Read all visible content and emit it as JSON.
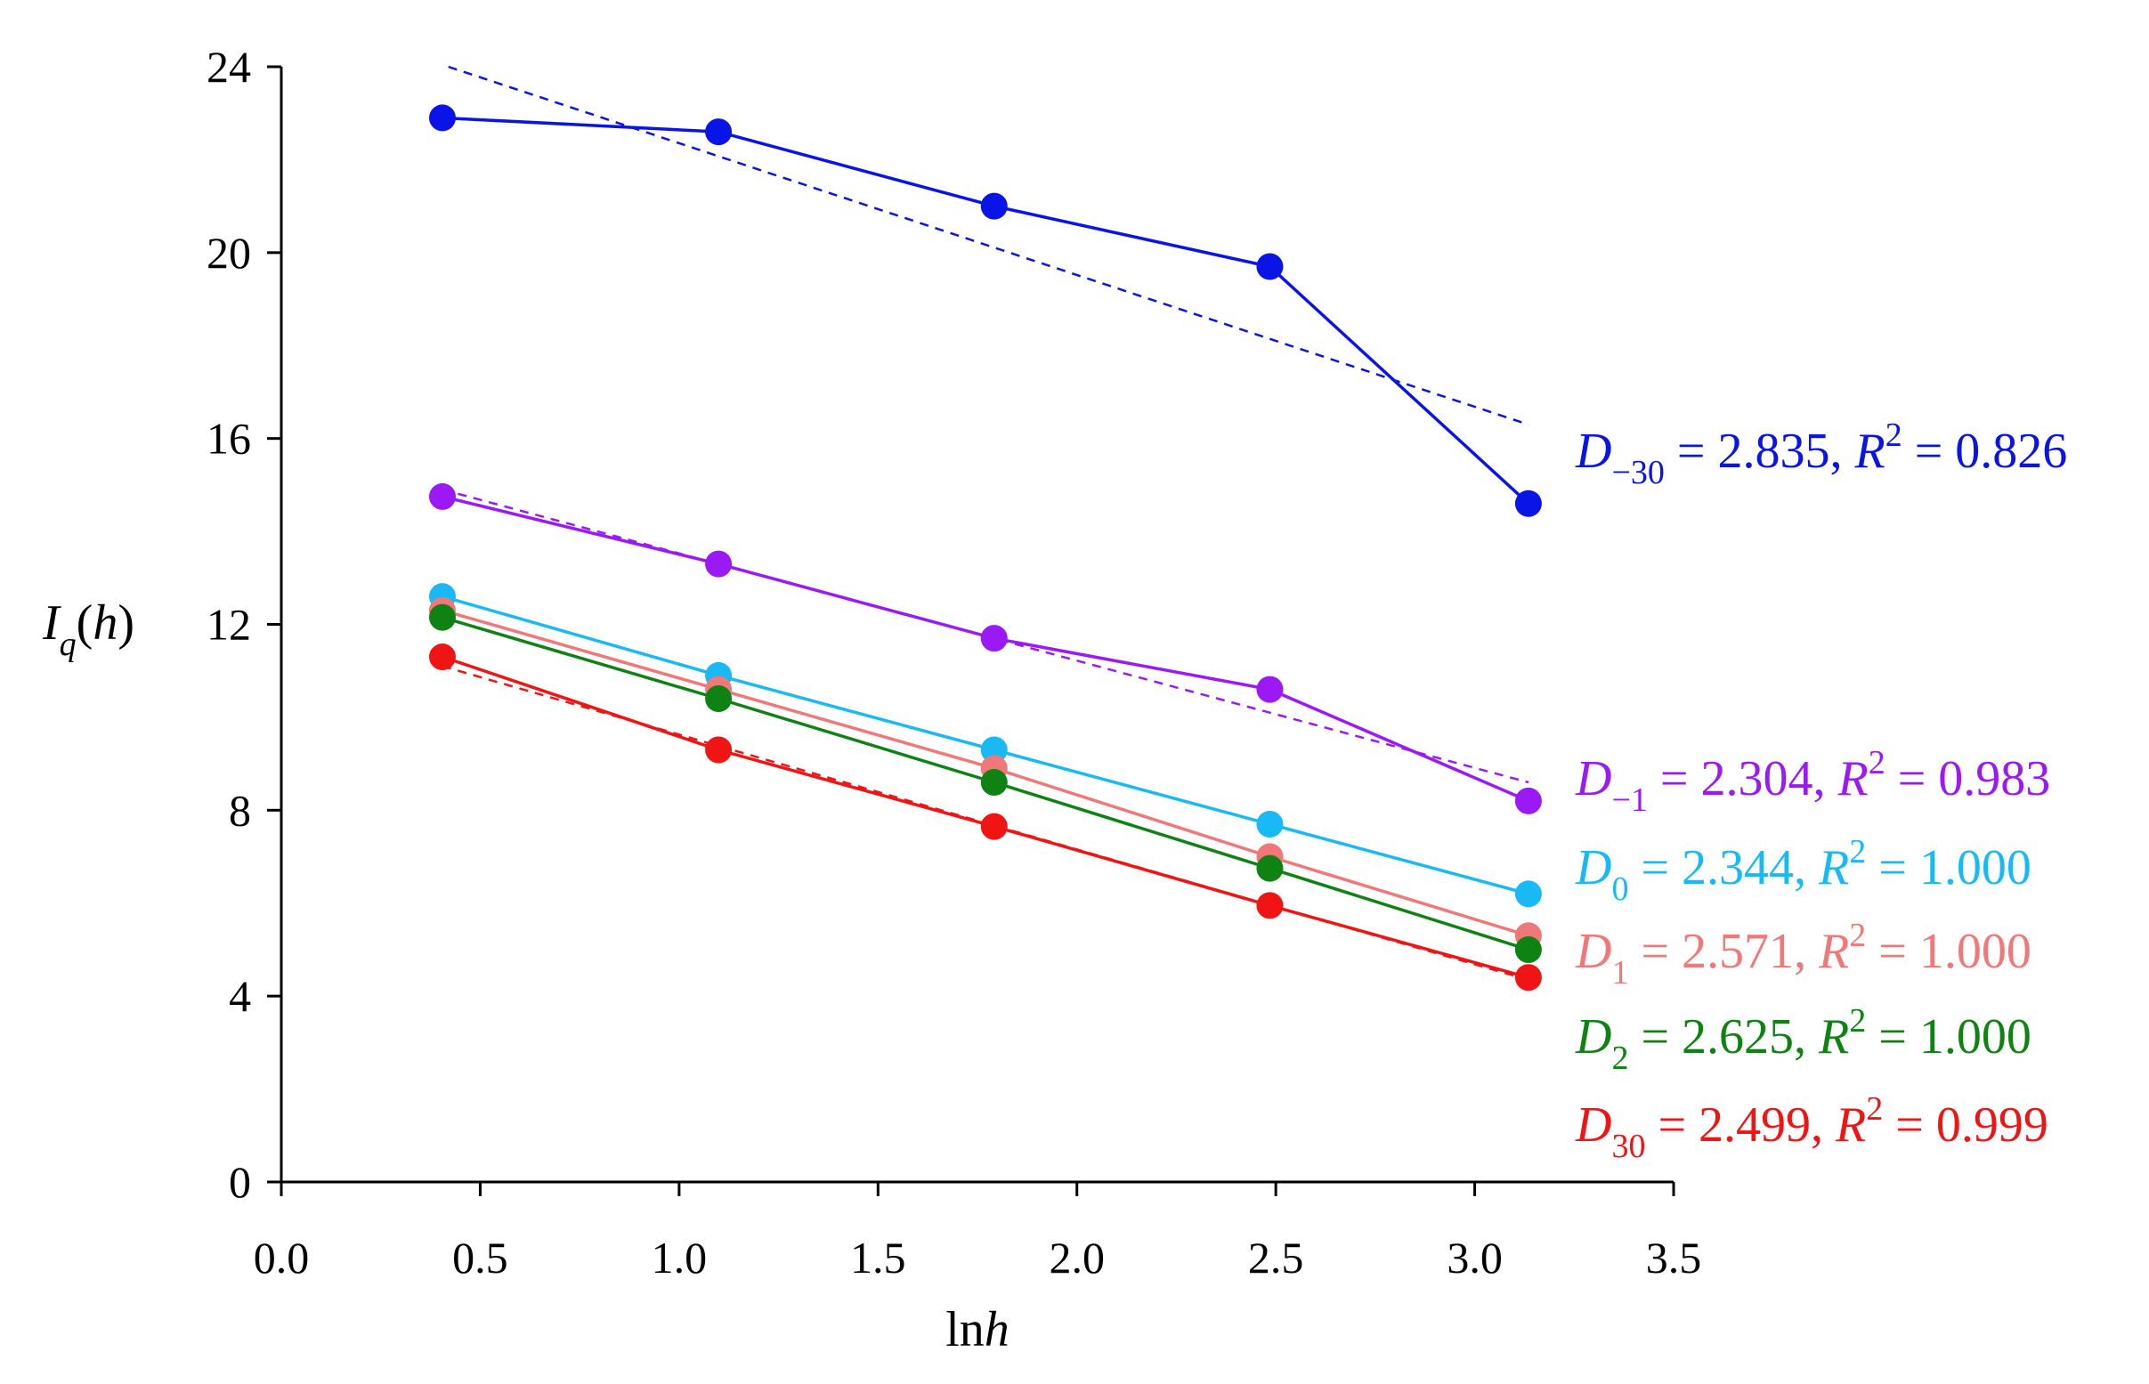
{
  "chart_data": {
    "type": "line",
    "title": "",
    "xlabel": "lnh",
    "ylabel": "I_q(h)",
    "xlim": [
      0.0,
      3.5
    ],
    "ylim": [
      0,
      24
    ],
    "x_ticks": [
      "0.0",
      "0.5",
      "1.0",
      "1.5",
      "2.0",
      "2.5",
      "3.0",
      "3.5"
    ],
    "y_ticks": [
      "0",
      "4",
      "8",
      "12",
      "16",
      "20",
      "24"
    ],
    "x": [
      0.405,
      1.099,
      1.792,
      2.485,
      3.135
    ],
    "series": [
      {
        "name": "q=-30",
        "color": "#0a14e6",
        "values": [
          22.9,
          22.6,
          21.0,
          19.7,
          14.6
        ],
        "fit": {
          "x0": 0.42,
          "y0": 24.0,
          "x1": 3.135,
          "y1": 16.3
        },
        "label": {
          "D": "D",
          "sub": "−30",
          "eq": " = 2.835, ",
          "R": "R",
          "sup": "2",
          "val": " = 0.826"
        }
      },
      {
        "name": "q=-1",
        "color": "#9b19f5",
        "values": [
          14.75,
          13.3,
          11.7,
          10.6,
          8.2
        ],
        "fit": {
          "x0": 0.405,
          "y0": 14.9,
          "x1": 3.135,
          "y1": 8.6
        },
        "label": {
          "D": "D",
          "sub": "−1",
          "eq": " = 2.304, ",
          "R": "R",
          "sup": "2",
          "val": " = 0.983"
        }
      },
      {
        "name": "q=0",
        "color": "#19b9f5",
        "values": [
          12.6,
          10.9,
          9.3,
          7.7,
          6.2
        ],
        "fit": null,
        "label": {
          "D": "D",
          "sub": "0",
          "eq": " = 2.344, ",
          "R": "R",
          "sup": "2",
          "val": " = 1.000"
        }
      },
      {
        "name": "q=1",
        "color": "#f07878",
        "values": [
          12.3,
          10.6,
          8.9,
          7.0,
          5.3
        ],
        "fit": null,
        "label": {
          "D": "D",
          "sub": "1",
          "eq": " = 2.571, ",
          "R": "R",
          "sup": "2",
          "val": " = 1.000"
        }
      },
      {
        "name": "q=2",
        "color": "#0f8214",
        "values": [
          12.15,
          10.4,
          8.6,
          6.75,
          5.0
        ],
        "fit": null,
        "label": {
          "D": "D",
          "sub": "2",
          "eq": " = 2.625, ",
          "R": "R",
          "sup": "2",
          "val": " = 1.000"
        }
      },
      {
        "name": "q=30",
        "color": "#f01414",
        "values": [
          11.3,
          9.3,
          7.65,
          5.95,
          4.4
        ],
        "fit": {
          "x0": 0.405,
          "y0": 11.1,
          "x1": 3.135,
          "y1": 4.35
        },
        "label": {
          "D": "D",
          "sub": "30",
          "eq": " = 2.499, ",
          "R": "R",
          "sup": "2",
          "val": " = 0.999"
        }
      }
    ]
  }
}
